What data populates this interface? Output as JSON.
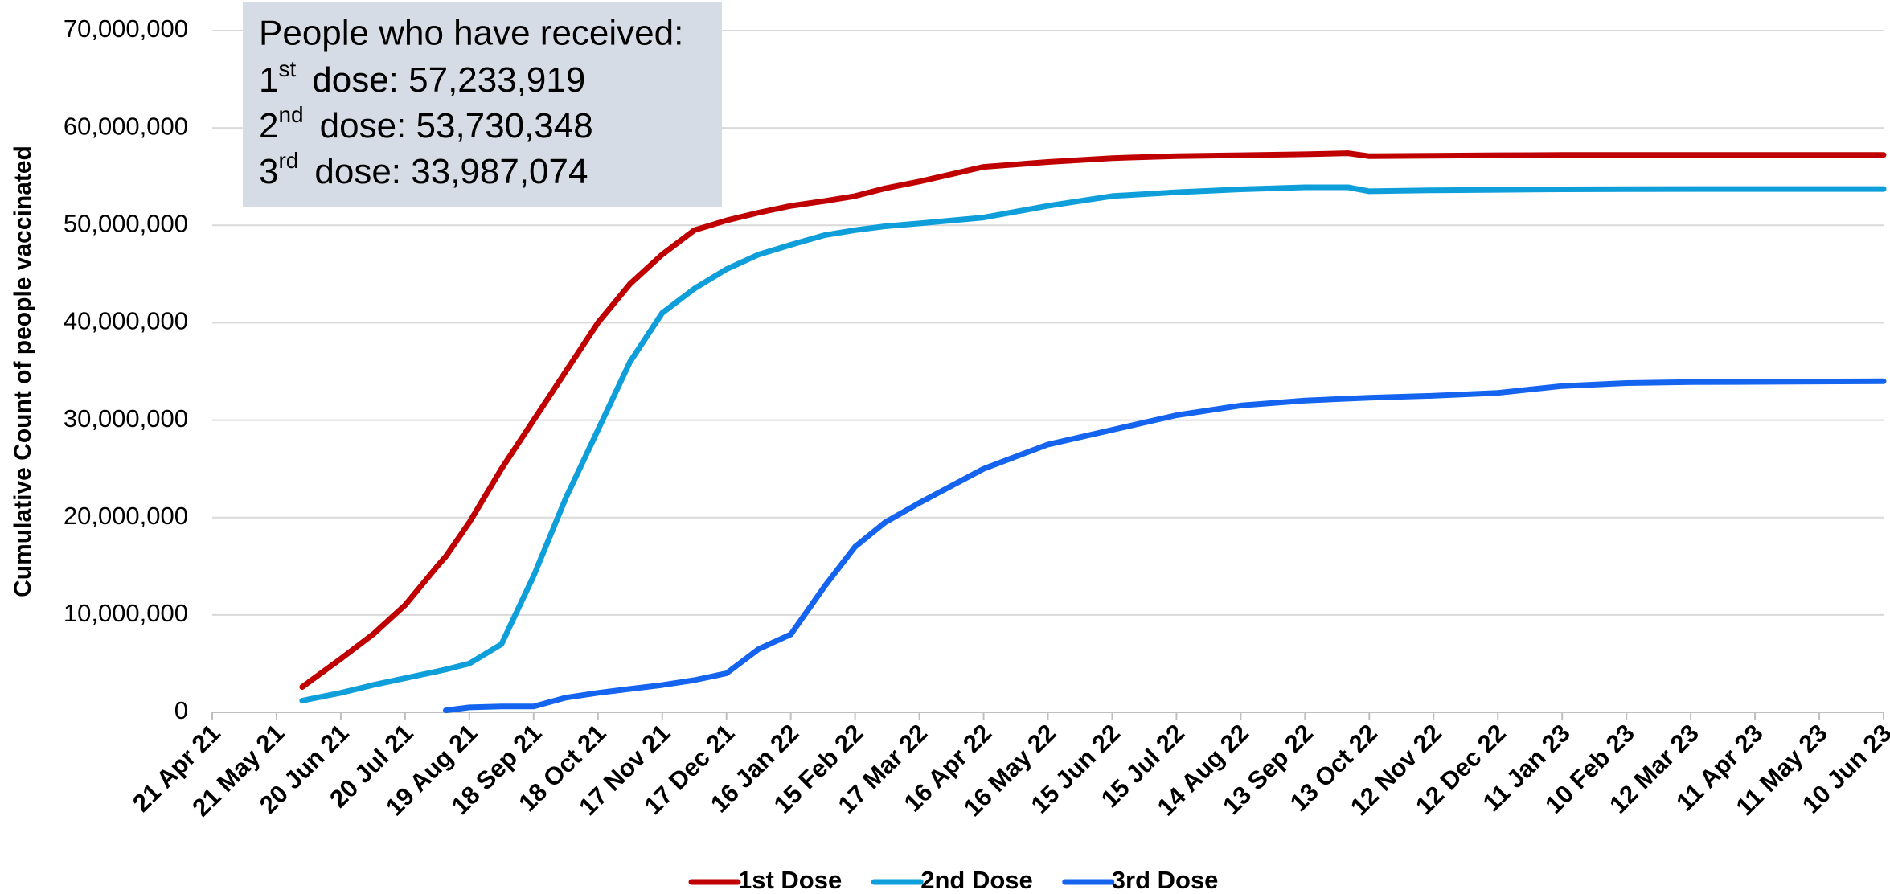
{
  "chart_data": {
    "type": "line",
    "y_axis_label": "Cumulative Count of people vaccinated",
    "annotation": {
      "heading": "People who have received:",
      "lines": [
        {
          "ordinal": "1",
          "suffix": "st",
          "text": "dose: 57,233,919"
        },
        {
          "ordinal": "2",
          "suffix": "nd",
          "text": "dose: 53,730,348"
        },
        {
          "ordinal": "3",
          "suffix": "rd",
          "text": "dose: 33,987,074"
        }
      ]
    },
    "x": [
      "2021-06-02",
      "2021-06-20",
      "2021-07-05",
      "2021-07-20",
      "2021-08-04",
      "2021-08-08",
      "2021-08-19",
      "2021-09-03",
      "2021-09-18",
      "2021-10-03",
      "2021-10-18",
      "2021-11-02",
      "2021-11-17",
      "2021-12-02",
      "2021-12-17",
      "2022-01-01",
      "2022-01-16",
      "2022-02-01",
      "2022-02-15",
      "2022-03-01",
      "2022-03-17",
      "2022-04-16",
      "2022-05-16",
      "2022-06-15",
      "2022-07-15",
      "2022-08-14",
      "2022-09-13",
      "2022-10-03",
      "2022-10-13",
      "2022-11-12",
      "2022-12-12",
      "2023-01-11",
      "2023-02-10",
      "2023-03-12",
      "2023-06-10"
    ],
    "series": [
      {
        "name": "1st Dose",
        "color": "#c00000",
        "values": [
          2600000,
          5500000,
          8000000,
          11000000,
          15000000,
          16000000,
          19500000,
          25000000,
          30000000,
          35000000,
          40000000,
          44000000,
          47000000,
          49500000,
          50500000,
          51300000,
          52000000,
          52500000,
          53000000,
          53800000,
          54500000,
          56000000,
          56500000,
          56900000,
          57100000,
          57200000,
          57300000,
          57400000,
          57100000,
          57150000,
          57200000,
          57220000,
          57230000,
          57230000,
          57233919
        ]
      },
      {
        "name": "2nd Dose",
        "color": "#0e9fdb",
        "values": [
          1200000,
          2000000,
          2800000,
          3500000,
          4200000,
          4400000,
          5000000,
          7000000,
          14000000,
          22000000,
          29000000,
          36000000,
          41000000,
          43500000,
          45500000,
          47000000,
          48000000,
          49000000,
          49500000,
          49900000,
          50200000,
          50800000,
          52000000,
          53000000,
          53400000,
          53700000,
          53900000,
          53900000,
          53500000,
          53600000,
          53650000,
          53700000,
          53720000,
          53730000,
          53730348
        ]
      },
      {
        "name": "3rd Dose",
        "color": "#1464f0",
        "values": [
          null,
          null,
          null,
          null,
          null,
          200000,
          500000,
          600000,
          600000,
          1500000,
          2000000,
          2400000,
          2800000,
          3300000,
          4000000,
          6500000,
          8000000,
          13000000,
          17000000,
          19500000,
          21500000,
          25000000,
          27500000,
          29000000,
          30500000,
          31500000,
          32000000,
          32200000,
          32300000,
          32500000,
          32800000,
          33500000,
          33800000,
          33900000,
          33987074
        ]
      }
    ],
    "xlim": [
      "2021-04-21",
      "2023-06-10"
    ],
    "xticks": [
      {
        "value": "2021-04-21",
        "label": "21 Apr 21"
      },
      {
        "value": "2021-05-21",
        "label": "21 May 21"
      },
      {
        "value": "2021-06-20",
        "label": "20 Jun 21"
      },
      {
        "value": "2021-07-20",
        "label": "20 Jul 21"
      },
      {
        "value": "2021-08-19",
        "label": "19 Aug 21"
      },
      {
        "value": "2021-09-18",
        "label": "18 Sep 21"
      },
      {
        "value": "2021-10-18",
        "label": "18 Oct 21"
      },
      {
        "value": "2021-11-17",
        "label": "17 Nov 21"
      },
      {
        "value": "2021-12-17",
        "label": "17 Dec 21"
      },
      {
        "value": "2022-01-16",
        "label": "16 Jan 22"
      },
      {
        "value": "2022-02-15",
        "label": "15 Feb 22"
      },
      {
        "value": "2022-03-17",
        "label": "17 Mar 22"
      },
      {
        "value": "2022-04-16",
        "label": "16 Apr 22"
      },
      {
        "value": "2022-05-16",
        "label": "16 May 22"
      },
      {
        "value": "2022-06-15",
        "label": "15 Jun 22"
      },
      {
        "value": "2022-07-15",
        "label": "15 Jul 22"
      },
      {
        "value": "2022-08-14",
        "label": "14 Aug 22"
      },
      {
        "value": "2022-09-13",
        "label": "13 Sep 22"
      },
      {
        "value": "2022-10-13",
        "label": "13 Oct 22"
      },
      {
        "value": "2022-11-12",
        "label": "12 Nov 22"
      },
      {
        "value": "2022-12-12",
        "label": "12 Dec 22"
      },
      {
        "value": "2023-01-11",
        "label": "11 Jan 23"
      },
      {
        "value": "2023-02-10",
        "label": "10 Feb 23"
      },
      {
        "value": "2023-03-12",
        "label": "12 Mar 23"
      },
      {
        "value": "2023-04-11",
        "label": "11 Apr 23"
      },
      {
        "value": "2023-05-11",
        "label": "11 May 23"
      },
      {
        "value": "2023-06-10",
        "label": "10 Jun 23"
      }
    ],
    "ylim": [
      0,
      70000000
    ],
    "yticks": [
      0,
      {
        "value": 10000000,
        "label": "10,000,000"
      },
      {
        "value": 20000000,
        "label": "20,000,000"
      },
      {
        "value": 30000000,
        "label": "30,000,000"
      },
      {
        "value": 40000000,
        "label": "40,000,000"
      },
      {
        "value": 50000000,
        "label": "50,000,000"
      },
      {
        "value": 60000000,
        "label": "60,000,000"
      },
      {
        "value": 70000000,
        "label": "70,000,000"
      }
    ],
    "grid": true,
    "legend": "bottom"
  }
}
